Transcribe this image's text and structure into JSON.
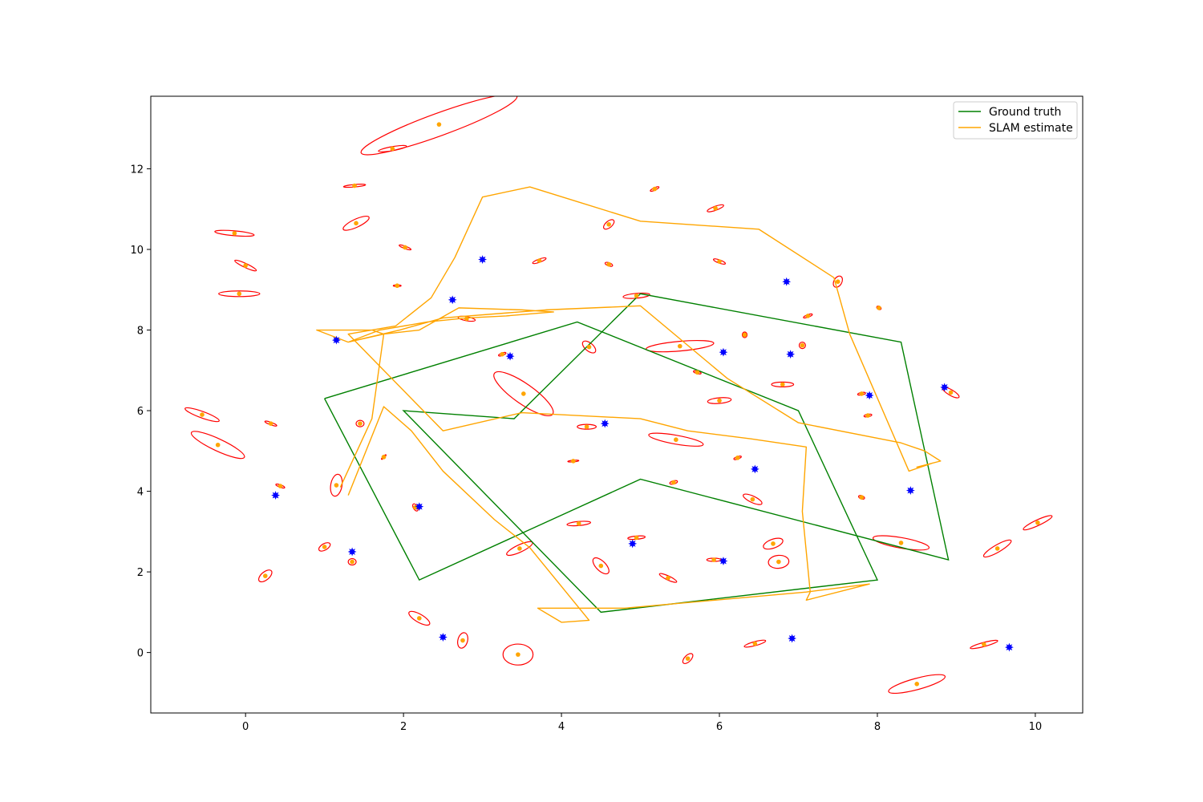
{
  "chart_data": {
    "type": "line",
    "title": "",
    "xlabel": "",
    "ylabel": "",
    "xlim": [
      -1.2,
      10.6
    ],
    "ylim": [
      -1.5,
      13.8
    ],
    "x_ticks": [
      0,
      2,
      4,
      6,
      8,
      10
    ],
    "y_ticks": [
      0,
      2,
      4,
      6,
      8,
      10,
      12
    ],
    "x_tick_labels": [
      "0",
      "2",
      "4",
      "6",
      "8",
      "10"
    ],
    "y_tick_labels": [
      "0",
      "2",
      "4",
      "6",
      "8",
      "10",
      "12"
    ],
    "grid": false,
    "legend": {
      "placement": "upper-right"
    },
    "series": [
      {
        "name": "Ground truth",
        "color": "#008000",
        "x": [
          1.0,
          4.2,
          7.0,
          8.0,
          4.5,
          2.0,
          3.4,
          5.0,
          8.3,
          8.9,
          5.0,
          2.2,
          1.0
        ],
        "y": [
          6.3,
          8.2,
          6.0,
          1.8,
          1.0,
          6.0,
          5.8,
          8.9,
          7.7,
          2.3,
          4.3,
          1.8,
          6.3
        ]
      },
      {
        "name": "SLAM estimate",
        "color": "#ffa500",
        "x": [
          1.2,
          1.6,
          1.75,
          1.6,
          1.35,
          1.15,
          0.9,
          1.3,
          1.7,
          2.3,
          2.8,
          3.3,
          3.9,
          3.5,
          2.7,
          2.2,
          1.75,
          1.3,
          1.95,
          2.5,
          3.8,
          5.0,
          6.1,
          7.0,
          8.3,
          8.6,
          8.8,
          8.5,
          8.7,
          8.4,
          7.65,
          7.45,
          6.5,
          5.0,
          3.6,
          3.0,
          2.65,
          2.35,
          1.9,
          1.3,
          2.5,
          3.5,
          5.0,
          5.6,
          6.4,
          7.1,
          7.05,
          7.15,
          7.1,
          7.9,
          7.1,
          4.8,
          3.7,
          4.0,
          4.35,
          3.6,
          3.15,
          2.5,
          2.1,
          1.75,
          1.3
        ],
        "y": [
          4.1,
          5.8,
          7.9,
          8.0,
          8.0,
          8.0,
          8.0,
          7.7,
          8.0,
          8.2,
          8.3,
          8.35,
          8.45,
          8.5,
          8.55,
          8.0,
          7.9,
          7.7,
          8.0,
          8.3,
          8.5,
          8.6,
          6.8,
          5.7,
          5.2,
          5.0,
          4.75,
          4.6,
          4.7,
          4.5,
          7.9,
          9.3,
          10.5,
          10.7,
          11.55,
          11.3,
          9.8,
          8.8,
          8.1,
          7.9,
          5.5,
          5.95,
          5.8,
          5.5,
          5.3,
          5.1,
          3.5,
          1.5,
          1.3,
          1.7,
          1.5,
          1.1,
          1.1,
          0.75,
          0.8,
          2.6,
          3.3,
          4.5,
          5.5,
          6.1,
          3.9
        ]
      }
    ],
    "landmarks_true": {
      "color": "#0000ff",
      "x": [
        0.38,
        1.15,
        1.35,
        2.2,
        2.5,
        2.62,
        3.0,
        3.35,
        4.55,
        4.9,
        6.05,
        6.05,
        6.45,
        6.85,
        6.9,
        6.92,
        7.9,
        8.42,
        8.85,
        9.67
      ],
      "y": [
        3.9,
        7.75,
        2.5,
        3.62,
        0.38,
        8.75,
        9.75,
        7.35,
        5.68,
        2.7,
        7.45,
        2.27,
        4.55,
        9.2,
        7.4,
        0.35,
        6.38,
        4.02,
        6.58,
        0.13
      ]
    },
    "landmarks_estimated": {
      "color": "#ffa500",
      "ellipse_color": "#ff0000",
      "x": [
        -0.14,
        0.0,
        -0.08,
        -0.55,
        -0.35,
        0.32,
        0.44,
        1.0,
        0.25,
        1.15,
        1.35,
        1.45,
        1.4,
        1.38,
        1.86,
        2.45,
        2.02,
        1.92,
        1.75,
        2.15,
        2.2,
        2.75,
        2.8,
        3.25,
        3.52,
        3.47,
        3.45,
        3.72,
        4.15,
        4.22,
        4.32,
        4.35,
        4.5,
        4.6,
        4.6,
        4.95,
        4.95,
        5.18,
        5.35,
        5.45,
        5.42,
        5.5,
        5.6,
        5.72,
        5.93,
        5.95,
        6.0,
        6.0,
        6.23,
        6.32,
        6.42,
        6.45,
        6.68,
        6.75,
        6.8,
        7.05,
        7.12,
        7.5,
        7.8,
        7.8,
        7.88,
        8.02,
        8.3,
        8.5,
        8.93,
        9.35,
        9.52,
        10.03
      ],
      "y": [
        10.4,
        9.6,
        8.9,
        5.9,
        5.15,
        5.68,
        4.13,
        2.62,
        1.9,
        4.15,
        2.25,
        5.68,
        10.65,
        11.58,
        12.5,
        13.1,
        10.05,
        9.1,
        4.85,
        3.6,
        0.85,
        0.3,
        8.28,
        7.4,
        6.42,
        2.58,
        -0.05,
        9.72,
        4.75,
        3.2,
        5.6,
        7.58,
        2.15,
        10.62,
        9.63,
        8.85,
        2.85,
        11.5,
        1.85,
        5.28,
        4.22,
        7.6,
        -0.15,
        6.95,
        2.3,
        11.02,
        9.7,
        6.25,
        4.83,
        7.88,
        3.8,
        0.22,
        2.7,
        2.25,
        6.65,
        7.62,
        8.35,
        9.2,
        6.42,
        3.85,
        5.88,
        8.55,
        2.72,
        -0.78,
        6.45,
        0.2,
        2.58,
        3.22
      ]
    }
  }
}
